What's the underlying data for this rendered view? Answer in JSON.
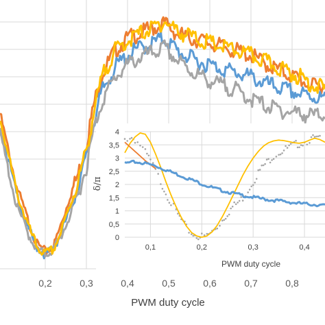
{
  "chart_data": [
    {
      "type": "line",
      "xlabel": "PWM duty cycle",
      "x_ticks": [
        "0,2",
        "0,3",
        "0,4",
        "0,5",
        "0,6",
        "0,7",
        "0,8"
      ],
      "xlim": [
        0.09,
        0.88
      ],
      "ylim": [
        0,
        1
      ],
      "grid": true,
      "series": [
        {
          "color": "#ED7D31",
          "x": [
            0.09,
            0.13,
            0.16,
            0.18,
            0.2,
            0.22,
            0.24,
            0.26,
            0.28,
            0.3,
            0.32,
            0.34,
            0.37,
            0.4,
            0.43,
            0.46,
            0.49,
            0.52,
            0.55,
            0.58,
            0.62,
            0.66,
            0.7,
            0.74,
            0.78,
            0.82,
            0.85,
            0.88
          ],
          "y": [
            0.6,
            0.3,
            0.15,
            0.06,
            0.03,
            0.05,
            0.15,
            0.26,
            0.35,
            0.48,
            0.65,
            0.77,
            0.86,
            0.91,
            0.93,
            0.95,
            0.97,
            0.93,
            0.91,
            0.9,
            0.88,
            0.86,
            0.84,
            0.8,
            0.77,
            0.74,
            0.71,
            0.72
          ]
        },
        {
          "color": "#5B9BD5",
          "x": [
            0.09,
            0.13,
            0.16,
            0.18,
            0.2,
            0.22,
            0.24,
            0.26,
            0.28,
            0.3,
            0.32,
            0.34,
            0.37,
            0.4,
            0.43,
            0.46,
            0.49,
            0.52,
            0.55,
            0.58,
            0.62,
            0.66,
            0.7,
            0.74,
            0.78,
            0.82,
            0.85,
            0.88
          ],
          "y": [
            0.55,
            0.27,
            0.12,
            0.05,
            0.02,
            0.04,
            0.12,
            0.2,
            0.3,
            0.42,
            0.58,
            0.7,
            0.79,
            0.84,
            0.87,
            0.89,
            0.91,
            0.86,
            0.83,
            0.81,
            0.79,
            0.77,
            0.75,
            0.72,
            0.7,
            0.68,
            0.67,
            0.66
          ]
        },
        {
          "color": "#A5A5A5",
          "x": [
            0.09,
            0.13,
            0.16,
            0.18,
            0.2,
            0.22,
            0.24,
            0.26,
            0.28,
            0.3,
            0.32,
            0.34,
            0.37,
            0.4,
            0.43,
            0.46,
            0.49,
            0.52,
            0.55,
            0.58,
            0.62,
            0.66,
            0.7,
            0.74,
            0.78,
            0.82,
            0.85,
            0.88
          ],
          "y": [
            0.52,
            0.22,
            0.1,
            0.04,
            0.02,
            0.04,
            0.1,
            0.18,
            0.27,
            0.38,
            0.55,
            0.66,
            0.75,
            0.8,
            0.83,
            0.85,
            0.87,
            0.82,
            0.78,
            0.75,
            0.72,
            0.7,
            0.66,
            0.63,
            0.61,
            0.6,
            0.59,
            0.6
          ]
        },
        {
          "color": "#FFC000",
          "x": [
            0.09,
            0.13,
            0.16,
            0.18,
            0.2,
            0.22,
            0.24,
            0.26,
            0.28,
            0.3,
            0.32,
            0.34,
            0.37,
            0.4,
            0.43,
            0.46,
            0.49,
            0.52,
            0.55,
            0.58,
            0.62,
            0.66,
            0.7,
            0.74,
            0.78,
            0.82,
            0.85,
            0.88
          ],
          "y": [
            0.58,
            0.28,
            0.13,
            0.05,
            0.02,
            0.04,
            0.12,
            0.22,
            0.32,
            0.45,
            0.62,
            0.76,
            0.86,
            0.9,
            0.93,
            0.95,
            0.98,
            0.94,
            0.92,
            0.9,
            0.88,
            0.86,
            0.84,
            0.81,
            0.78,
            0.75,
            0.72,
            0.7
          ]
        }
      ]
    },
    {
      "type": "line",
      "ylabel": "δ/π",
      "xlabel": "PWM duty cycle",
      "y_ticks": [
        "0",
        "0,5",
        "1",
        "1,5",
        "2",
        "2,5",
        "3",
        "3,5",
        "4"
      ],
      "x_ticks": [
        "0,1",
        "0,2",
        "0,3",
        "0,4"
      ],
      "xlim": [
        0.0,
        0.44
      ],
      "ylim": [
        0,
        4
      ],
      "grid": true,
      "series": [
        {
          "color": "#A5A5A5",
          "style": "dots",
          "x": [
            0.05,
            0.06,
            0.07,
            0.08,
            0.09,
            0.1,
            0.11,
            0.12,
            0.13,
            0.14,
            0.15,
            0.16,
            0.17,
            0.18,
            0.19,
            0.2,
            0.21,
            0.22,
            0.23,
            0.24,
            0.25,
            0.26,
            0.27,
            0.28,
            0.29,
            0.3,
            0.31,
            0.32,
            0.33,
            0.34,
            0.35,
            0.36,
            0.37,
            0.38,
            0.39,
            0.4,
            0.41,
            0.42,
            0.43
          ],
          "y": [
            3.7,
            3.8,
            3.7,
            3.5,
            3.2,
            2.9,
            2.5,
            2.1,
            1.7,
            1.3,
            0.95,
            0.65,
            0.35,
            0.15,
            0.05,
            0.02,
            0.05,
            0.2,
            0.4,
            0.65,
            0.9,
            1.15,
            1.3,
            1.5,
            1.8,
            2.1,
            2.45,
            2.7,
            2.9,
            3.1,
            3.2,
            3.3,
            3.4,
            3.5,
            3.55,
            3.6,
            3.7,
            3.75,
            3.7
          ]
        },
        {
          "color": "#FFC000",
          "x": [
            0.05,
            0.06,
            0.07,
            0.08,
            0.09,
            0.1,
            0.11,
            0.12,
            0.13,
            0.14,
            0.15,
            0.16,
            0.17,
            0.18,
            0.19,
            0.2,
            0.21,
            0.22,
            0.23,
            0.24,
            0.25,
            0.26,
            0.27,
            0.28,
            0.29,
            0.3,
            0.31,
            0.32,
            0.33,
            0.34,
            0.35,
            0.36,
            0.37,
            0.38,
            0.39,
            0.4,
            0.41,
            0.42,
            0.43,
            0.44
          ],
          "y": [
            3.2,
            3.55,
            3.8,
            3.95,
            3.9,
            3.6,
            3.15,
            2.65,
            2.1,
            1.6,
            1.15,
            0.75,
            0.42,
            0.18,
            0.05,
            0.0,
            0.05,
            0.2,
            0.45,
            0.78,
            1.15,
            1.55,
            1.95,
            2.35,
            2.7,
            3.0,
            3.25,
            3.45,
            3.58,
            3.65,
            3.68,
            3.66,
            3.62,
            3.58,
            3.56,
            3.6,
            3.68,
            3.75,
            3.7,
            3.6
          ]
        },
        {
          "color": "#ED7D31",
          "x": [
            0.05,
            0.07,
            0.09,
            0.11
          ],
          "y": [
            3.6,
            3.25,
            2.9,
            2.6
          ]
        },
        {
          "color": "#5B9BD5",
          "x": [
            0.05,
            0.07,
            0.09,
            0.11,
            0.13,
            0.15,
            0.17,
            0.19,
            0.21,
            0.23,
            0.25,
            0.27,
            0.29,
            0.31,
            0.33,
            0.35,
            0.37,
            0.39,
            0.41,
            0.43,
            0.44
          ],
          "y": [
            2.8,
            2.85,
            2.8,
            2.7,
            2.55,
            2.4,
            2.25,
            2.1,
            1.95,
            1.82,
            1.72,
            1.62,
            1.55,
            1.48,
            1.42,
            1.38,
            1.33,
            1.28,
            1.25,
            1.22,
            1.2
          ]
        }
      ]
    }
  ]
}
